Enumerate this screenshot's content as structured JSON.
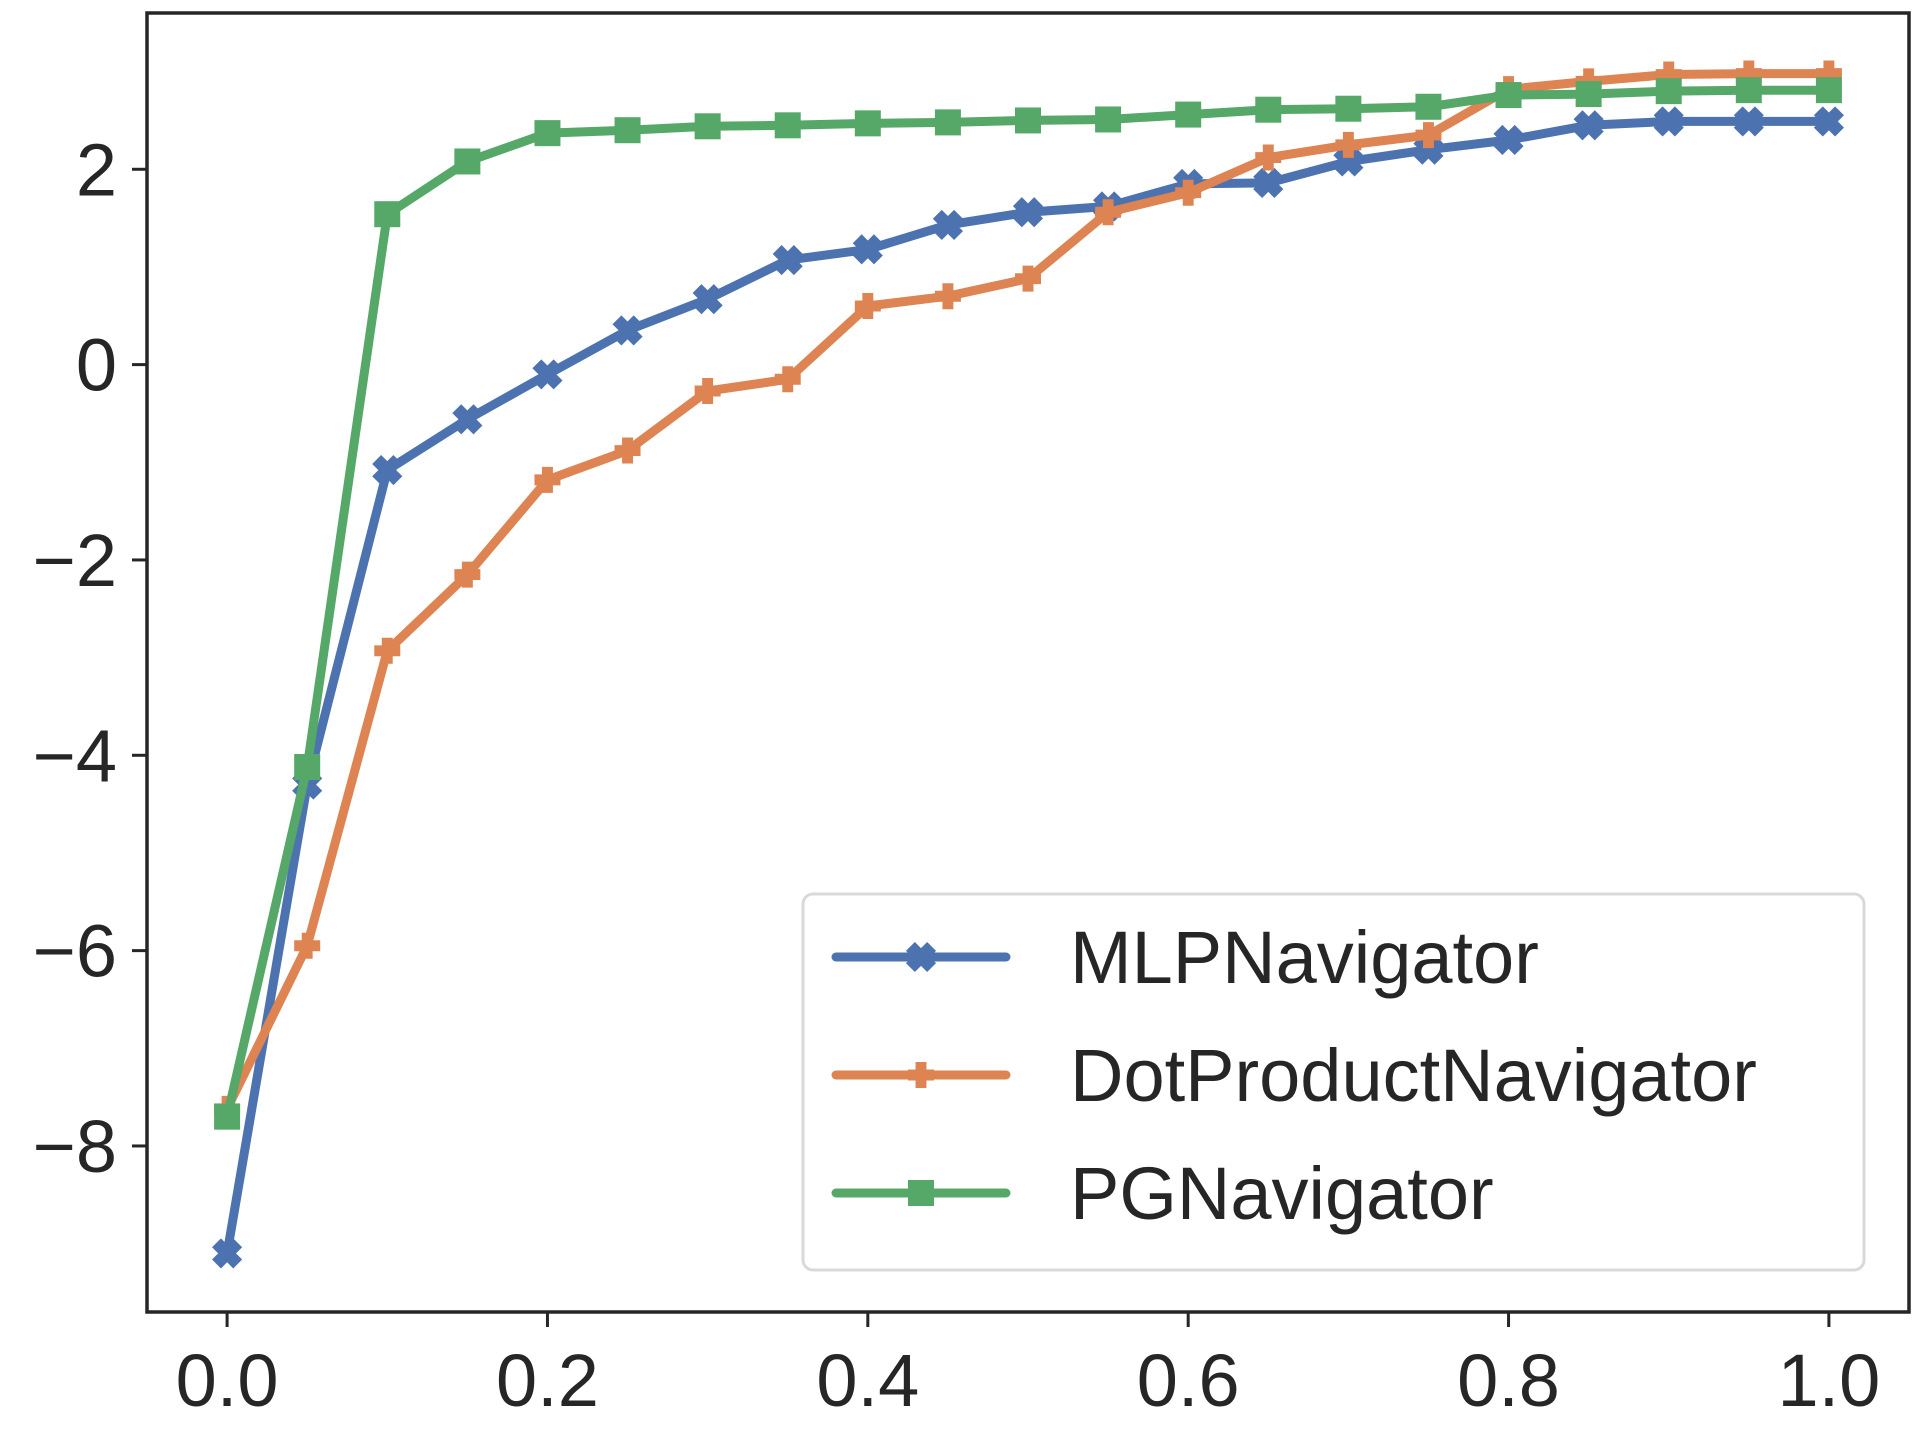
{
  "chart_data": {
    "type": "line",
    "title": "",
    "xlabel": "",
    "ylabel": "",
    "xlim": [
      -0.05,
      1.05
    ],
    "ylim": [
      -9.7,
      3.6
    ],
    "xticks": [
      0.0,
      0.2,
      0.4,
      0.6,
      0.8,
      1.0
    ],
    "xtick_labels": [
      "0.0",
      "0.2",
      "0.4",
      "0.6",
      "0.8",
      "1.0"
    ],
    "yticks": [
      -8,
      -6,
      -4,
      -2,
      0,
      2
    ],
    "ytick_labels": [
      "−8",
      "−6",
      "−4",
      "−2",
      "0",
      "2"
    ],
    "grid": false,
    "legend_position": "lower-right",
    "x": [
      0.0,
      0.05,
      0.1,
      0.15,
      0.2,
      0.25,
      0.3,
      0.35,
      0.4,
      0.45,
      0.5,
      0.55,
      0.6,
      0.65,
      0.7,
      0.75,
      0.8,
      0.85,
      0.9,
      0.95,
      1.0
    ],
    "series": [
      {
        "name": "MLPNavigator",
        "color": "#4c72b0",
        "marker": "x-filled",
        "values": [
          -9.1,
          -4.3,
          -1.08,
          -0.56,
          -0.1,
          0.35,
          0.67,
          1.07,
          1.18,
          1.43,
          1.56,
          1.62,
          1.85,
          1.86,
          2.08,
          2.2,
          2.3,
          2.45,
          2.49,
          2.49,
          2.49
        ]
      },
      {
        "name": "DotProductNavigator",
        "color": "#dd8452",
        "marker": "plus-filled",
        "values": [
          -7.62,
          -5.95,
          -2.93,
          -2.15,
          -1.18,
          -0.88,
          -0.27,
          -0.15,
          0.6,
          0.7,
          0.88,
          1.56,
          1.76,
          2.12,
          2.25,
          2.35,
          2.82,
          2.9,
          2.97,
          2.98,
          2.98
        ]
      },
      {
        "name": "PGNavigator",
        "color": "#55a868",
        "marker": "square",
        "values": [
          -7.7,
          -4.12,
          1.54,
          2.08,
          2.37,
          2.4,
          2.44,
          2.45,
          2.47,
          2.48,
          2.5,
          2.51,
          2.56,
          2.61,
          2.62,
          2.64,
          2.76,
          2.77,
          2.8,
          2.81,
          2.81
        ]
      }
    ]
  }
}
